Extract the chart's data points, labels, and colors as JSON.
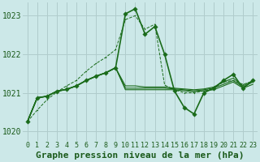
{
  "title": "Graphe pression niveau de la mer (hPa)",
  "background_color": "#cce8e8",
  "grid_color": "#b0cccc",
  "line_color": "#1a6b1a",
  "xlim": [
    -0.5,
    23.5
  ],
  "ylim": [
    1019.75,
    1023.35
  ],
  "yticks": [
    1020,
    1021,
    1022,
    1023
  ],
  "xticks": [
    0,
    1,
    2,
    3,
    4,
    5,
    6,
    7,
    8,
    9,
    10,
    11,
    12,
    13,
    14,
    15,
    16,
    17,
    18,
    19,
    20,
    21,
    22,
    23
  ],
  "series_dotted": [
    [
      1020.25,
      1020.55,
      1020.82,
      1021.02,
      1021.18,
      1021.32,
      1021.56,
      1021.76,
      1021.92,
      1022.12,
      1022.9,
      1023.0,
      1022.65,
      1022.78,
      1021.2,
      1021.08,
      1021.0,
      1021.0,
      1021.05,
      1021.12,
      1021.28,
      1021.32,
      1021.22,
      1021.3
    ]
  ],
  "series_flat": [
    [
      1020.25,
      1020.87,
      1020.91,
      1021.04,
      1021.09,
      1021.18,
      1021.32,
      1021.43,
      1021.52,
      1021.65,
      1021.08,
      1021.08,
      1021.08,
      1021.08,
      1021.08,
      1021.08,
      1021.05,
      1021.03,
      1021.05,
      1021.08,
      1021.18,
      1021.28,
      1021.12,
      1021.22
    ],
    [
      1020.25,
      1020.87,
      1020.91,
      1021.04,
      1021.09,
      1021.18,
      1021.32,
      1021.43,
      1021.52,
      1021.65,
      1021.12,
      1021.12,
      1021.12,
      1021.12,
      1021.12,
      1021.1,
      1021.08,
      1021.05,
      1021.08,
      1021.12,
      1021.22,
      1021.32,
      1021.15,
      1021.28
    ],
    [
      1020.25,
      1020.87,
      1020.91,
      1021.04,
      1021.09,
      1021.18,
      1021.32,
      1021.43,
      1021.52,
      1021.65,
      1021.18,
      1021.18,
      1021.15,
      1021.15,
      1021.15,
      1021.12,
      1021.1,
      1021.08,
      1021.1,
      1021.15,
      1021.28,
      1021.38,
      1021.18,
      1021.32
    ]
  ],
  "series_marker": [
    [
      1020.25,
      1020.87,
      1020.91,
      1021.04,
      1021.09,
      1021.18,
      1021.32,
      1021.43,
      1021.52,
      1021.65,
      1023.05,
      1023.18,
      1022.52,
      1022.72,
      1022.0,
      1021.05,
      1020.62,
      1020.45,
      1021.0,
      1021.12,
      1021.32,
      1021.48,
      1021.12,
      1021.32
    ]
  ],
  "tick_fontsize": 6,
  "title_fontsize": 8
}
